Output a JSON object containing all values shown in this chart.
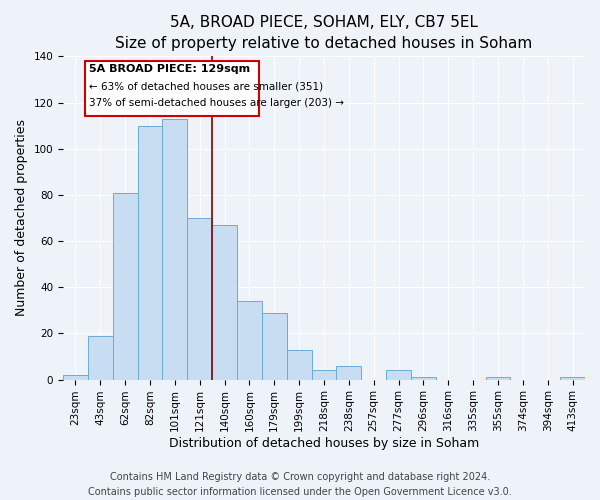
{
  "title": "5A, BROAD PIECE, SOHAM, ELY, CB7 5EL",
  "subtitle": "Size of property relative to detached houses in Soham",
  "xlabel": "Distribution of detached houses by size in Soham",
  "ylabel": "Number of detached properties",
  "bar_labels": [
    "23sqm",
    "43sqm",
    "62sqm",
    "82sqm",
    "101sqm",
    "121sqm",
    "140sqm",
    "160sqm",
    "179sqm",
    "199sqm",
    "218sqm",
    "238sqm",
    "257sqm",
    "277sqm",
    "296sqm",
    "316sqm",
    "335sqm",
    "355sqm",
    "374sqm",
    "394sqm",
    "413sqm"
  ],
  "bar_heights": [
    2,
    19,
    81,
    110,
    113,
    70,
    67,
    34,
    29,
    13,
    4,
    6,
    0,
    4,
    1,
    0,
    0,
    1,
    0,
    0,
    1
  ],
  "bar_color": "#c9ddf2",
  "bar_edge_color": "#6aacd8",
  "ylim": [
    0,
    140
  ],
  "yticks": [
    0,
    20,
    40,
    60,
    80,
    100,
    120,
    140
  ],
  "annotation_title": "5A BROAD PIECE: 129sqm",
  "annotation_line1": "← 63% of detached houses are smaller (351)",
  "annotation_line2": "37% of semi-detached houses are larger (203) →",
  "annotation_box_color": "#ffffff",
  "annotation_box_edge_color": "#cc0000",
  "red_line_index": 5.5,
  "footer1": "Contains HM Land Registry data © Crown copyright and database right 2024.",
  "footer2": "Contains public sector information licensed under the Open Government Licence v3.0.",
  "background_color": "#eef2f9",
  "grid_color": "#ffffff",
  "title_fontsize": 11,
  "subtitle_fontsize": 9.5,
  "axis_label_fontsize": 9,
  "tick_fontsize": 7.5,
  "footer_fontsize": 7
}
